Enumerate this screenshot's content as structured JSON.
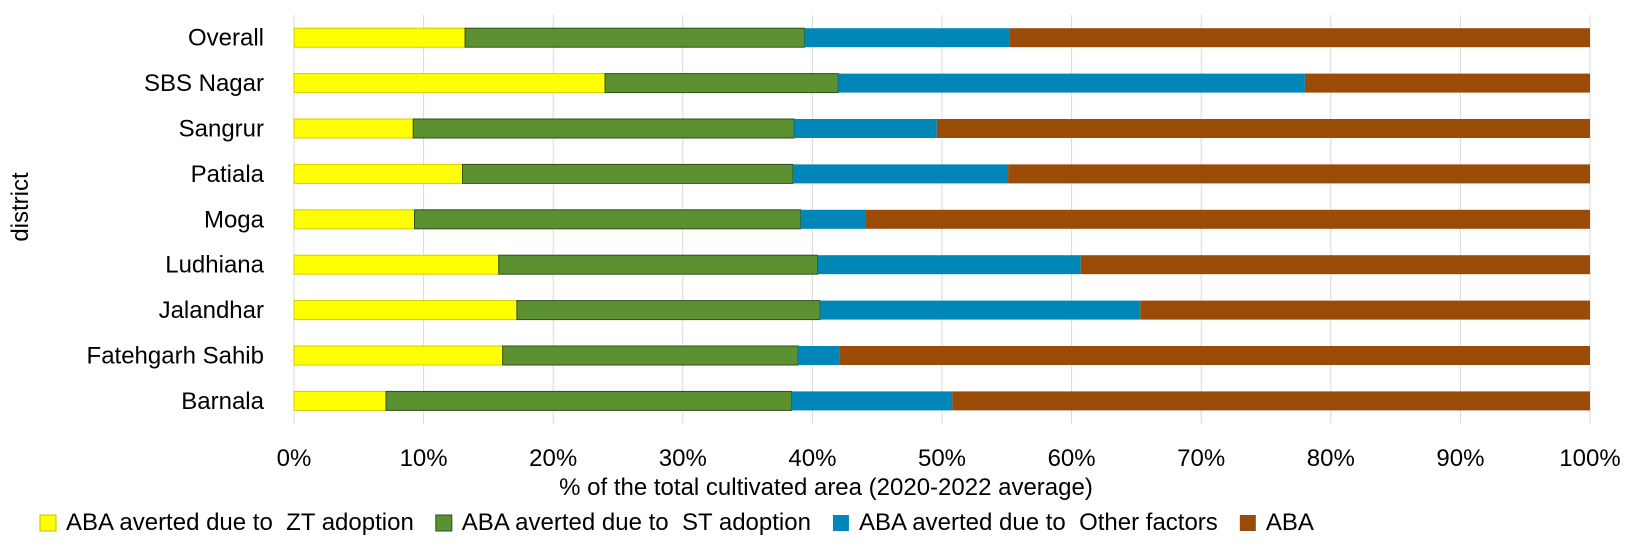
{
  "chart_data": {
    "type": "bar",
    "orientation": "horizontal",
    "stacked": true,
    "categories": [
      "Overall",
      "SBS Nagar",
      "Sangrur",
      "Patiala",
      "Moga",
      "Ludhiana",
      "Jalandhar",
      "Fatehgarh Sahib",
      "Barnala"
    ],
    "series": [
      {
        "name": "ABA averted due to  ZT adoption",
        "color": "#FFFF00",
        "values": [
          13.2,
          24.0,
          9.2,
          13.0,
          9.3,
          15.8,
          17.2,
          16.1,
          7.1
        ]
      },
      {
        "name": "ABA averted due to  ST adoption",
        "color": "#5B9130",
        "values": [
          26.2,
          18.0,
          29.4,
          25.5,
          29.8,
          24.6,
          23.4,
          22.8,
          31.3
        ]
      },
      {
        "name": "ABA averted due to  Other factors",
        "color": "#0087B8",
        "values": [
          15.8,
          36.0,
          11.0,
          16.6,
          5.0,
          20.3,
          24.7,
          3.2,
          12.4
        ]
      },
      {
        "name": "ABA",
        "color": "#9A4B07",
        "values": [
          44.8,
          22.0,
          50.4,
          44.9,
          55.9,
          39.3,
          34.7,
          57.9,
          49.2
        ]
      }
    ],
    "xlabel": "% of the total cultivated area (2020-2022 average)",
    "ylabel": "district",
    "xlim": [
      0,
      100
    ],
    "xticks": [
      "0%",
      "10%",
      "20%",
      "30%",
      "40%",
      "50%",
      "60%",
      "70%",
      "80%",
      "90%",
      "100%"
    ],
    "grid": true,
    "legend_position": "bottom"
  }
}
